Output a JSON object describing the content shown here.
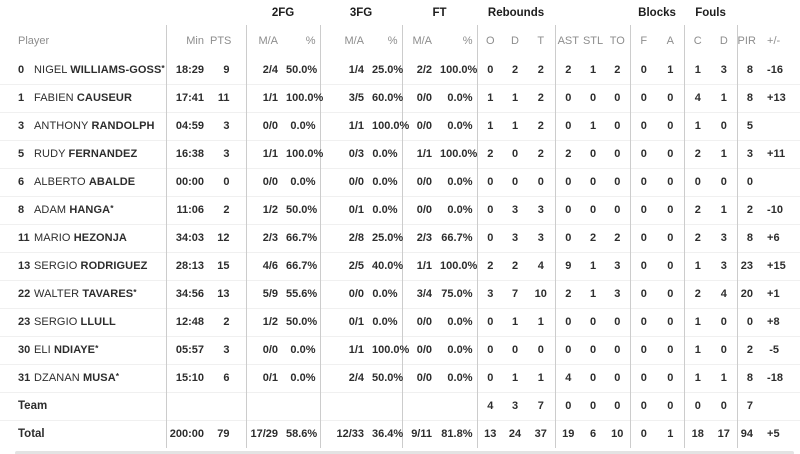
{
  "table": {
    "group_labels": {
      "fg2": "2FG",
      "fg3": "3FG",
      "ft": "FT",
      "rebounds": "Rebounds",
      "blocks": "Blocks",
      "fouls": "Fouls"
    },
    "column_headers": {
      "player": "Player",
      "min": "Min",
      "pts": "PTS",
      "ma": "M/A",
      "pct": "%",
      "o": "O",
      "d": "D",
      "t": "T",
      "ast": "AST",
      "stl": "STL",
      "to": "TO",
      "block_fv": "F",
      "block_ag": "A",
      "foul_cm": "C",
      "foul_rv": "D",
      "pir": "PIR",
      "plus_minus": "+/-"
    },
    "rows": [
      {
        "no": "0",
        "first": "NIGEL",
        "last": "WILLIAMS-GOSS",
        "star": "*",
        "stats": [
          "18:29",
          "9",
          "2/4",
          "50.0%",
          "1/4",
          "25.0%",
          "2/2",
          "100.0%",
          "0",
          "2",
          "2",
          "2",
          "1",
          "2",
          "0",
          "1",
          "1",
          "3",
          "8",
          "-16"
        ]
      },
      {
        "no": "1",
        "first": "FABIEN",
        "last": "CAUSEUR",
        "star": "",
        "stats": [
          "17:41",
          "11",
          "1/1",
          "100.0%",
          "3/5",
          "60.0%",
          "0/0",
          "0.0%",
          "1",
          "1",
          "2",
          "0",
          "0",
          "0",
          "0",
          "0",
          "4",
          "1",
          "8",
          "+13"
        ]
      },
      {
        "no": "3",
        "first": "ANTHONY",
        "last": "RANDOLPH",
        "star": "",
        "stats": [
          "04:59",
          "3",
          "0/0",
          "0.0%",
          "1/1",
          "100.0%",
          "0/0",
          "0.0%",
          "1",
          "1",
          "2",
          "0",
          "1",
          "0",
          "0",
          "0",
          "1",
          "0",
          "5",
          ""
        ]
      },
      {
        "no": "5",
        "first": "RUDY",
        "last": "FERNANDEZ",
        "star": "",
        "stats": [
          "16:38",
          "3",
          "1/1",
          "100.0%",
          "0/3",
          "0.0%",
          "1/1",
          "100.0%",
          "2",
          "0",
          "2",
          "2",
          "0",
          "0",
          "0",
          "0",
          "2",
          "1",
          "3",
          "+11"
        ]
      },
      {
        "no": "6",
        "first": "ALBERTO",
        "last": "ABALDE",
        "star": "",
        "stats": [
          "00:00",
          "0",
          "0/0",
          "0.0%",
          "0/0",
          "0.0%",
          "0/0",
          "0.0%",
          "0",
          "0",
          "0",
          "0",
          "0",
          "0",
          "0",
          "0",
          "0",
          "0",
          "0",
          ""
        ]
      },
      {
        "no": "8",
        "first": "ADAM",
        "last": "HANGA",
        "star": "*",
        "stats": [
          "11:06",
          "2",
          "1/2",
          "50.0%",
          "0/1",
          "0.0%",
          "0/0",
          "0.0%",
          "0",
          "3",
          "3",
          "0",
          "0",
          "0",
          "0",
          "0",
          "2",
          "1",
          "2",
          "-10"
        ]
      },
      {
        "no": "11",
        "first": "MARIO",
        "last": "HEZONJA",
        "star": "",
        "stats": [
          "34:03",
          "12",
          "2/3",
          "66.7%",
          "2/8",
          "25.0%",
          "2/3",
          "66.7%",
          "0",
          "3",
          "3",
          "0",
          "2",
          "2",
          "0",
          "0",
          "2",
          "3",
          "8",
          "+6"
        ]
      },
      {
        "no": "13",
        "first": "SERGIO",
        "last": "RODRIGUEZ",
        "star": "",
        "stats": [
          "28:13",
          "15",
          "4/6",
          "66.7%",
          "2/5",
          "40.0%",
          "1/1",
          "100.0%",
          "2",
          "2",
          "4",
          "9",
          "1",
          "3",
          "0",
          "0",
          "1",
          "3",
          "23",
          "+15"
        ]
      },
      {
        "no": "22",
        "first": "WALTER",
        "last": "TAVARES",
        "star": "*",
        "stats": [
          "34:56",
          "13",
          "5/9",
          "55.6%",
          "0/0",
          "0.0%",
          "3/4",
          "75.0%",
          "3",
          "7",
          "10",
          "2",
          "1",
          "3",
          "0",
          "0",
          "2",
          "4",
          "20",
          "+1"
        ]
      },
      {
        "no": "23",
        "first": "SERGIO",
        "last": "LLULL",
        "star": "",
        "stats": [
          "12:48",
          "2",
          "1/2",
          "50.0%",
          "0/1",
          "0.0%",
          "0/0",
          "0.0%",
          "0",
          "1",
          "1",
          "0",
          "0",
          "0",
          "0",
          "0",
          "1",
          "0",
          "0",
          "+8"
        ]
      },
      {
        "no": "30",
        "first": "ELI",
        "last": "NDIAYE",
        "star": "*",
        "stats": [
          "05:57",
          "3",
          "0/0",
          "0.0%",
          "1/1",
          "100.0%",
          "0/0",
          "0.0%",
          "0",
          "0",
          "0",
          "0",
          "0",
          "0",
          "0",
          "0",
          "1",
          "0",
          "2",
          "-5"
        ]
      },
      {
        "no": "31",
        "first": "DZANAN",
        "last": "MUSA",
        "star": "*",
        "stats": [
          "15:10",
          "6",
          "0/1",
          "0.0%",
          "2/4",
          "50.0%",
          "0/0",
          "0.0%",
          "0",
          "1",
          "1",
          "4",
          "0",
          "0",
          "0",
          "0",
          "1",
          "1",
          "8",
          "-18"
        ]
      },
      {
        "label": "Team",
        "bold": true,
        "stats": [
          "",
          "",
          "",
          "",
          "",
          "",
          "",
          "",
          "4",
          "3",
          "7",
          "0",
          "0",
          "0",
          "0",
          "0",
          "0",
          "0",
          "7",
          ""
        ]
      },
      {
        "label": "Total",
        "bold": true,
        "stats": [
          "200:00",
          "79",
          "17/29",
          "58.6%",
          "12/33",
          "36.4%",
          "9/11",
          "81.8%",
          "13",
          "24",
          "37",
          "19",
          "6",
          "10",
          "0",
          "1",
          "18",
          "17",
          "94",
          "+5"
        ]
      }
    ]
  }
}
